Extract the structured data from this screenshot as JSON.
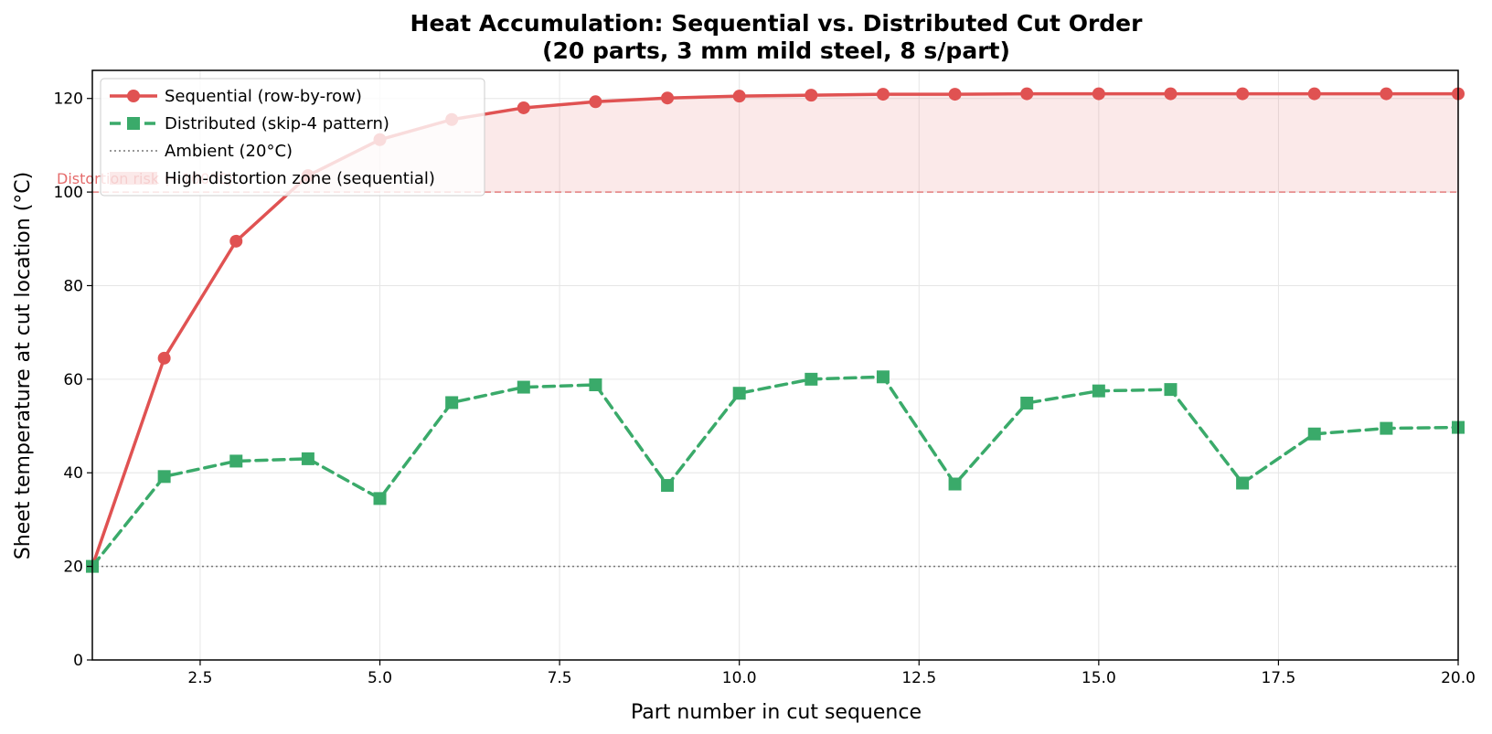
{
  "chart_data": {
    "type": "line",
    "title": "Heat Accumulation: Sequential vs. Distributed Cut Order",
    "subtitle": "(20 parts, 3 mm mild steel, 8 s/part)",
    "xlabel": "Part number in cut sequence",
    "ylabel": "Sheet temperature at cut location (°C)",
    "xlim": [
      1,
      20
    ],
    "ylim": [
      0,
      126
    ],
    "xticks": [
      2.5,
      5.0,
      7.5,
      10.0,
      12.5,
      15.0,
      17.5,
      20.0
    ],
    "xtick_labels": [
      "2.5",
      "5.0",
      "7.5",
      "10.0",
      "12.5",
      "15.0",
      "17.5",
      "20.0"
    ],
    "yticks": [
      0,
      20,
      40,
      60,
      80,
      100,
      120
    ],
    "ytick_labels": [
      "0",
      "20",
      "40",
      "60",
      "80",
      "100",
      "120"
    ],
    "grid": true,
    "legend_position": "top-left",
    "x": [
      1,
      2,
      3,
      4,
      5,
      6,
      7,
      8,
      9,
      10,
      11,
      12,
      13,
      14,
      15,
      16,
      17,
      18,
      19,
      20
    ],
    "series": [
      {
        "name": "Sequential (row-by-row)",
        "color": "#e05252",
        "line_style": "solid",
        "marker": "circle",
        "values": [
          20,
          64.5,
          89.5,
          103.5,
          111.2,
          115.5,
          118,
          119.3,
          120.1,
          120.5,
          120.7,
          120.9,
          120.9,
          121,
          121,
          121,
          121,
          121,
          121,
          121
        ]
      },
      {
        "name": "Distributed (skip-4 pattern)",
        "color": "#3aaa6a",
        "line_style": "dashed",
        "marker": "square",
        "values": [
          20,
          39.2,
          42.5,
          43,
          34.5,
          55,
          58.3,
          58.8,
          37.3,
          57,
          60,
          60.5,
          37.6,
          54.9,
          57.5,
          57.8,
          37.8,
          48.3,
          49.5,
          49.7
        ]
      }
    ],
    "reference_lines": [
      {
        "name": "Ambient (20°C)",
        "y": 20,
        "color": "#777777",
        "line_style": "dotted"
      },
      {
        "y": 100,
        "color": "#e05252",
        "line_style": "dashed"
      }
    ],
    "shaded_region": {
      "name": "High-distortion zone (sequential)",
      "lower": 100,
      "upper_series": "Sequential (row-by-row)",
      "color": "#e05252"
    },
    "annotations": [
      {
        "text": "Distortion risk (~100°C)",
        "x": 1,
        "y": 100,
        "color": "#e05252"
      }
    ]
  }
}
